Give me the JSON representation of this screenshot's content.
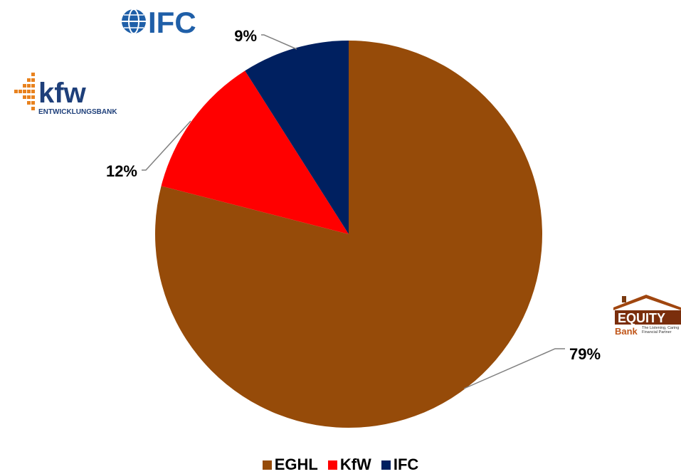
{
  "chart_data": {
    "type": "pie",
    "categories": [
      "EGHL",
      "KfW",
      "IFC"
    ],
    "values": [
      79,
      12,
      9
    ],
    "labels": [
      "79%",
      "12%",
      "9%"
    ],
    "colors": [
      "#964B09",
      "#FF0000",
      "#002060"
    ],
    "legend": "bottom"
  },
  "logos": {
    "ifc": {
      "text": "IFC",
      "icon": "globe-icon"
    },
    "kfw": {
      "text": "kfw",
      "subtext": "ENTWICKLUNGSBANK",
      "icon": "dot-grid-icon"
    },
    "equity": {
      "text": "EQUITY",
      "subtext": "Bank",
      "tagline": "The Listening, Caring Financial Partner",
      "icon": "house-roof-icon"
    }
  }
}
